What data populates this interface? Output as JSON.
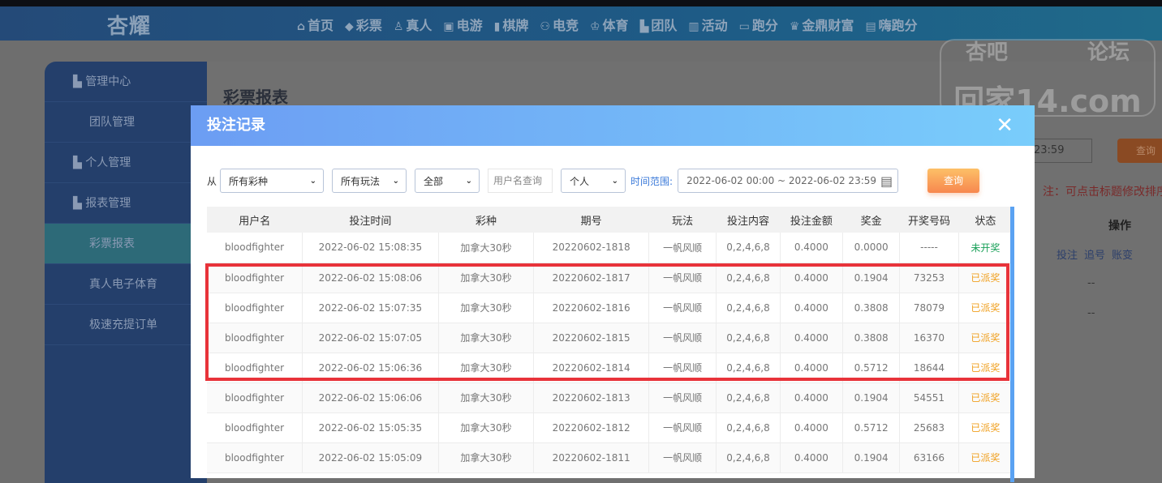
{
  "nav": {
    "logo": "杏耀",
    "items": [
      {
        "icon": "home-icon",
        "glyph": "⌂",
        "label": "首页"
      },
      {
        "icon": "lottery-icon",
        "glyph": "◆",
        "label": "彩票"
      },
      {
        "icon": "live-icon",
        "glyph": "♙",
        "label": "真人"
      },
      {
        "icon": "slot-icon",
        "glyph": "▣",
        "label": "电游"
      },
      {
        "icon": "cards-icon",
        "glyph": "▮",
        "label": "棋牌"
      },
      {
        "icon": "gamepad-icon",
        "glyph": "⚇",
        "label": "电竞"
      },
      {
        "icon": "trophy-icon",
        "glyph": "♔",
        "label": "体育"
      },
      {
        "icon": "team-icon",
        "glyph": "▙",
        "label": "团队"
      },
      {
        "icon": "gift-icon",
        "glyph": "▥",
        "label": "活动"
      },
      {
        "icon": "car-icon",
        "glyph": "▭",
        "label": "跑分"
      },
      {
        "icon": "wealth-icon",
        "glyph": "♛",
        "label": "金鼎财富"
      },
      {
        "icon": "hi-icon",
        "glyph": "▤",
        "label": "嗨跑分"
      }
    ]
  },
  "watermark": {
    "top_left": "杏吧",
    "top_right": "论坛",
    "main": "回家14.com"
  },
  "sidebar": {
    "items": [
      {
        "label": "管理中心",
        "type": "head",
        "icon": "team-icon"
      },
      {
        "label": "团队管理",
        "type": "sub"
      },
      {
        "label": "个人管理",
        "type": "head",
        "icon": "user-icon"
      },
      {
        "label": "报表管理",
        "type": "head",
        "icon": "report-icon"
      },
      {
        "label": "彩票报表",
        "type": "sub",
        "active": true
      },
      {
        "label": "真人电子体育",
        "type": "sub"
      },
      {
        "label": "极速充提订单",
        "type": "sub"
      }
    ]
  },
  "main": {
    "title": "彩票报表",
    "date_end": "23:59",
    "query": "查询",
    "note": "注：可点击标题修改排序",
    "op_header": "操作",
    "links": [
      "投注",
      "追号",
      "账变"
    ],
    "dash": "--"
  },
  "modal": {
    "title": "投注记录",
    "close": "✕",
    "filters": {
      "from_label": "从",
      "lottery": "所有彩种",
      "play": "所有玩法",
      "status": "全部",
      "username_placeholder": "用户名查询",
      "scope": "个人",
      "time_label": "时间范围:",
      "date_range": "2022-06-02 00:00 ~ 2022-06-02 23:59",
      "query": "查询"
    },
    "columns": [
      "用户名",
      "投注时间",
      "彩种",
      "期号",
      "玩法",
      "投注内容",
      "投注金额",
      "奖金",
      "开奖号码",
      "状态"
    ],
    "rows": [
      [
        "bloodfighter",
        "2022-06-02 15:08:35",
        "加拿大30秒",
        "20220602-1818",
        "一帆风顺",
        "0,2,4,6,8",
        "0.4000",
        "0.0000",
        "-----",
        "未开奖"
      ],
      [
        "bloodfighter",
        "2022-06-02 15:08:06",
        "加拿大30秒",
        "20220602-1817",
        "一帆风顺",
        "0,2,4,6,8",
        "0.4000",
        "0.1904",
        "73253",
        "已派奖"
      ],
      [
        "bloodfighter",
        "2022-06-02 15:07:35",
        "加拿大30秒",
        "20220602-1816",
        "一帆风顺",
        "0,2,4,6,8",
        "0.4000",
        "0.3808",
        "78079",
        "已派奖"
      ],
      [
        "bloodfighter",
        "2022-06-02 15:07:05",
        "加拿大30秒",
        "20220602-1815",
        "一帆风顺",
        "0,2,4,6,8",
        "0.4000",
        "0.3808",
        "16370",
        "已派奖"
      ],
      [
        "bloodfighter",
        "2022-06-02 15:06:36",
        "加拿大30秒",
        "20220602-1814",
        "一帆风顺",
        "0,2,4,6,8",
        "0.4000",
        "0.5712",
        "18644",
        "已派奖"
      ],
      [
        "bloodfighter",
        "2022-06-02 15:06:06",
        "加拿大30秒",
        "20220602-1813",
        "一帆风顺",
        "0,2,4,6,8",
        "0.4000",
        "0.1904",
        "54551",
        "已派奖"
      ],
      [
        "bloodfighter",
        "2022-06-02 15:05:35",
        "加拿大30秒",
        "20220602-1812",
        "一帆风顺",
        "0,2,4,6,8",
        "0.4000",
        "0.5712",
        "25683",
        "已派奖"
      ],
      [
        "bloodfighter",
        "2022-06-02 15:05:09",
        "加拿大30秒",
        "20220602-1811",
        "一帆风顺",
        "0,2,4,6,8",
        "0.4000",
        "0.1904",
        "63166",
        "已派奖"
      ]
    ]
  },
  "colors": {
    "highlight": "#e8333a",
    "pending": "#18a058",
    "paid": "#f0a020",
    "header_start": "#6c9df3",
    "header_end": "#79cdfb"
  }
}
